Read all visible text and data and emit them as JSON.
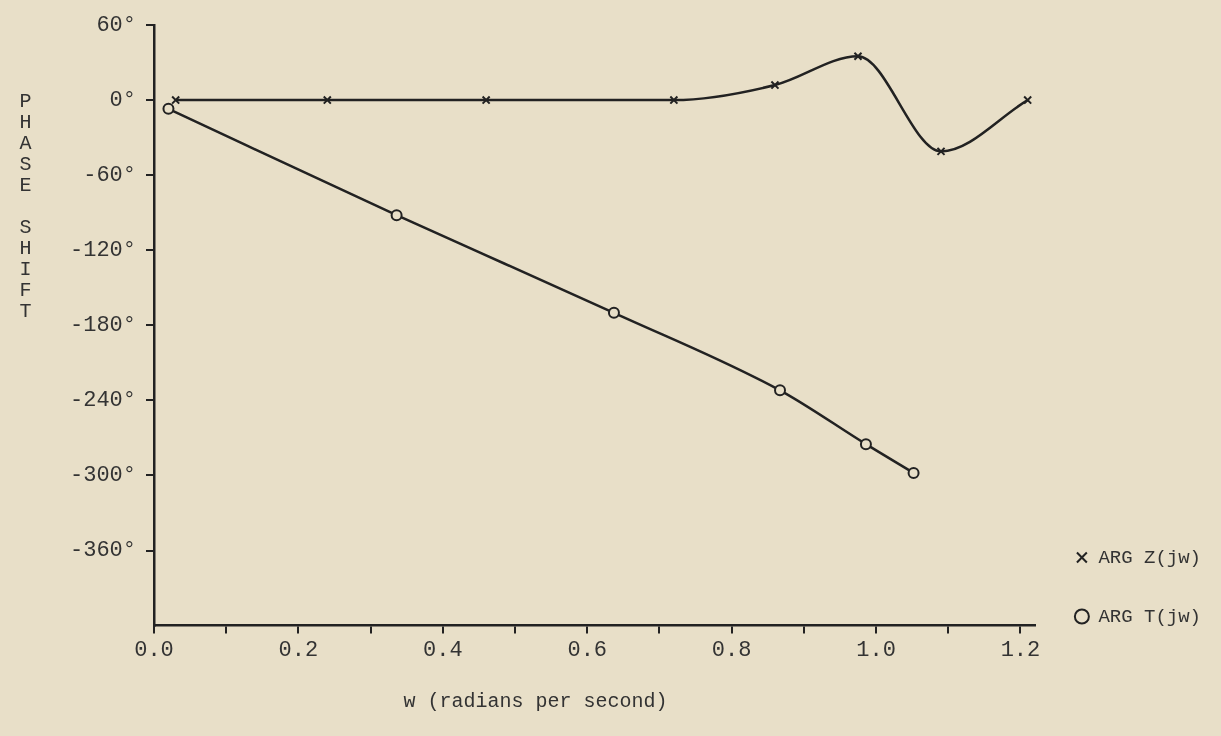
{
  "chart_data": {
    "type": "line",
    "xlabel": "w (radians per second)",
    "ylabel": "PHASE SHIFT",
    "xlim": [
      0,
      1.22
    ],
    "ylim": [
      -420,
      60
    ],
    "xticks": [
      {
        "value": 0,
        "label": "0.0"
      },
      {
        "value": 0.1,
        "label": null
      },
      {
        "value": 0.2,
        "label": "0.2"
      },
      {
        "value": 0.3,
        "label": null
      },
      {
        "value": 0.4,
        "label": "0.4"
      },
      {
        "value": 0.5,
        "label": null
      },
      {
        "value": 0.6,
        "label": "0.6"
      },
      {
        "value": 0.7,
        "label": null
      },
      {
        "value": 0.8,
        "label": "0.8"
      },
      {
        "value": 0.9,
        "label": null
      },
      {
        "value": 1.0,
        "label": "1.0"
      },
      {
        "value": 1.1,
        "label": null
      },
      {
        "value": 1.2,
        "label": "1.2"
      }
    ],
    "yticks": [
      {
        "value": -360,
        "label": "-360°"
      },
      {
        "value": -300,
        "label": "-300°"
      },
      {
        "value": -240,
        "label": "-240°"
      },
      {
        "value": -180,
        "label": "-180°"
      },
      {
        "value": -120,
        "label": "-120°"
      },
      {
        "value": -60,
        "label": "-60°"
      },
      {
        "value": 0,
        "label": "0°"
      },
      {
        "value": 60,
        "label": "60°"
      }
    ],
    "grid": false,
    "legend": "right",
    "line_style": "solid",
    "series": [
      {
        "name": "ARG Z(jw)",
        "color": "#222222",
        "marker": "cross",
        "x": [
          0.03,
          0.24,
          0.46,
          0.72,
          0.86,
          0.975,
          1.09,
          1.21
        ],
        "values": [
          0,
          0,
          0,
          0,
          12,
          35,
          -41,
          0
        ]
      },
      {
        "name": "ARG T(jw)",
        "color": "#222222",
        "marker": "circle",
        "x": [
          0.02,
          0.336,
          0.637,
          0.867,
          0.986,
          1.052
        ],
        "values": [
          -7,
          -92,
          -170,
          -232,
          -275,
          -298
        ]
      }
    ]
  }
}
